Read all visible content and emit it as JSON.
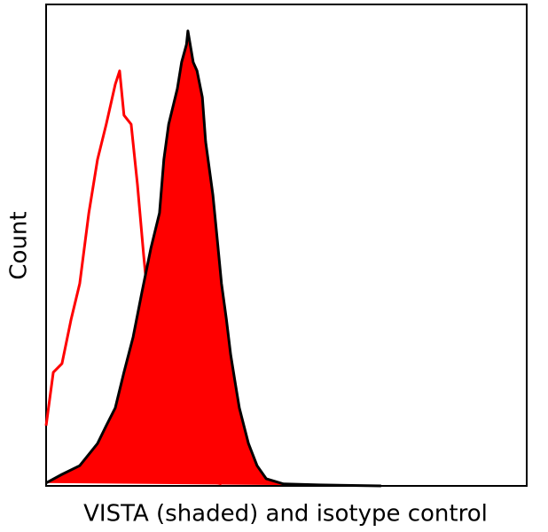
{
  "chart_data": {
    "type": "histogram-overlay",
    "x_label": "VISTA (shaded) and isotype control",
    "y_label": "Count",
    "xlim": [
      0,
      100
    ],
    "ylim": [
      0,
      100
    ],
    "series": [
      {
        "color": "#ff0000",
        "fill": false,
        "x": [
          0,
          1.5,
          3.3,
          5.2,
          7.0,
          8.9,
          10.7,
          12.5,
          14.4,
          15.3,
          16.2,
          17.7,
          19.0,
          20.3,
          21.8,
          23.6,
          25.5,
          27.3,
          31.0,
          36.5
        ],
        "values": [
          12.5,
          23.6,
          25.4,
          34.6,
          42.0,
          56.7,
          67.8,
          75.1,
          83.4,
          86.2,
          77.0,
          75.1,
          62.6,
          47.9,
          32.2,
          19.3,
          10.5,
          5.0,
          1.5,
          0.4
        ]
      },
      {
        "color": "#ff0000",
        "edge_color": "#000000",
        "fill": true,
        "x": [
          0,
          3.3,
          7.0,
          10.7,
          12.5,
          14.4,
          16.2,
          18.1,
          19.9,
          21.8,
          23.6,
          24.5,
          25.5,
          27.3,
          28.2,
          29.2,
          29.5,
          30.6,
          31.4,
          32.5,
          33.2,
          34.7,
          35.6,
          36.5,
          37.5,
          38.4,
          39.3,
          40.2,
          42.1,
          43.9,
          45.8,
          49.4,
          56.8,
          69.7
        ],
        "values": [
          0.6,
          2.4,
          4.2,
          8.8,
          12.5,
          16.2,
          23.6,
          30.9,
          40.1,
          49.4,
          56.7,
          67.8,
          75.1,
          82.5,
          88.0,
          91.7,
          94.5,
          88.0,
          86.2,
          80.7,
          71.5,
          60.4,
          51.2,
          42.0,
          34.6,
          27.3,
          21.7,
          16.2,
          8.8,
          4.2,
          1.5,
          0.4,
          0.2,
          0
        ]
      }
    ]
  }
}
